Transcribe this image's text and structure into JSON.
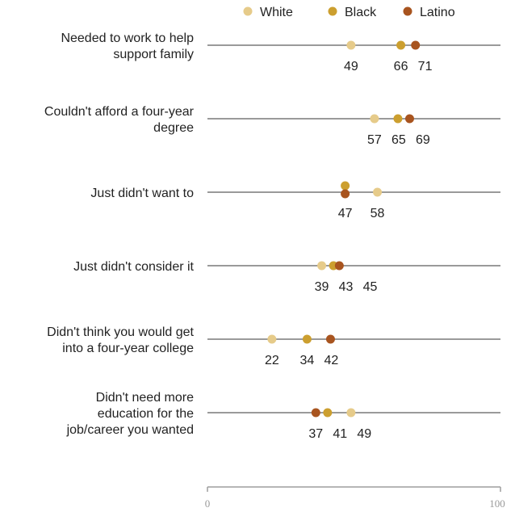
{
  "chart_data": {
    "type": "dot",
    "xlim": [
      0,
      100
    ],
    "x_ticks": [
      "0",
      "100"
    ],
    "series": [
      {
        "name": "White",
        "color": "#e6cb8a"
      },
      {
        "name": "Black",
        "color": "#cc9f2f"
      },
      {
        "name": "Latino",
        "color": "#a8541f"
      }
    ],
    "categories": [
      {
        "label": [
          "Needed to work to help",
          "support family"
        ],
        "values": {
          "White": 49,
          "Black": 66,
          "Latino": 71
        }
      },
      {
        "label": [
          "Couldn't afford a four-year",
          "degree"
        ],
        "values": {
          "White": 57,
          "Black": 65,
          "Latino": 69
        }
      },
      {
        "label": [
          "Just didn't want to"
        ],
        "values": {
          "White": 58,
          "Black": 47,
          "Latino": 47
        }
      },
      {
        "label": [
          "Just didn't consider it"
        ],
        "values": {
          "White": 39,
          "Black": 43,
          "Latino": 45
        }
      },
      {
        "label": [
          "Didn't think you would get",
          "into a four-year college"
        ],
        "values": {
          "White": 22,
          "Black": 34,
          "Latino": 42
        }
      },
      {
        "label": [
          "Didn't need more",
          "education for the",
          "job/career you wanted"
        ],
        "values": {
          "White": 49,
          "Black": 41,
          "Latino": 37
        }
      }
    ],
    "value_labels": [
      [
        "49",
        "66",
        "71"
      ],
      [
        "57",
        "65",
        "69"
      ],
      [
        "47",
        "58"
      ],
      [
        "39",
        "43",
        "45"
      ],
      [
        "22",
        "34",
        "42"
      ],
      [
        "37",
        "41",
        "49"
      ]
    ],
    "legend_position": "top",
    "grid": false
  }
}
